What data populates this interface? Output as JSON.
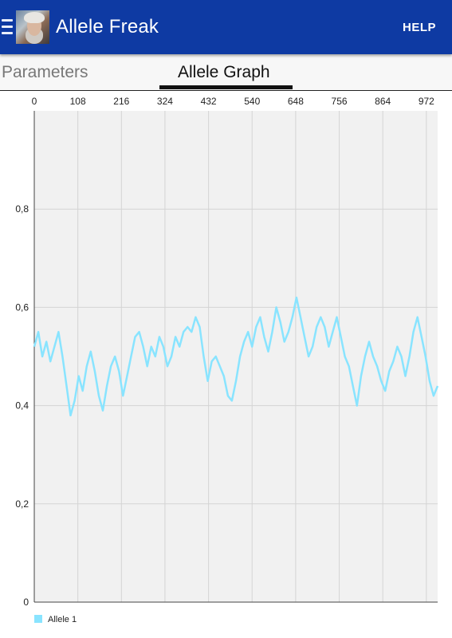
{
  "appbar": {
    "title": "Allele Freak",
    "help_label": "HELP"
  },
  "tabs": [
    {
      "label": "Parameters",
      "selected": false
    },
    {
      "label": "Allele Graph",
      "selected": true
    }
  ],
  "chart_data": {
    "type": "line",
    "x_ticks": [
      0,
      108,
      216,
      324,
      432,
      540,
      648,
      756,
      864,
      972
    ],
    "y_ticks": [
      "0",
      "0,2",
      "0,4",
      "0,6",
      "0,8"
    ],
    "xlim": [
      0,
      1000
    ],
    "ylim": [
      0,
      1
    ],
    "x_axis_position": "top",
    "grid": true,
    "legend": "bottom-left",
    "series": [
      {
        "name": "Allele 1",
        "color": "#89e4ff",
        "x": [
          0,
          10,
          20,
          30,
          40,
          50,
          60,
          70,
          80,
          90,
          100,
          110,
          120,
          130,
          140,
          150,
          160,
          170,
          180,
          190,
          200,
          210,
          220,
          230,
          240,
          250,
          260,
          270,
          280,
          290,
          300,
          310,
          320,
          330,
          340,
          350,
          360,
          370,
          380,
          390,
          400,
          410,
          420,
          430,
          440,
          450,
          460,
          470,
          480,
          490,
          500,
          510,
          520,
          530,
          540,
          550,
          560,
          570,
          580,
          590,
          600,
          610,
          620,
          630,
          640,
          650,
          660,
          670,
          680,
          690,
          700,
          710,
          720,
          730,
          740,
          750,
          760,
          770,
          780,
          790,
          800,
          810,
          820,
          830,
          840,
          850,
          860,
          870,
          880,
          890,
          900,
          910,
          920,
          930,
          940,
          950,
          960,
          970,
          980,
          990,
          1000
        ],
        "values": [
          0.52,
          0.55,
          0.5,
          0.53,
          0.49,
          0.52,
          0.55,
          0.5,
          0.44,
          0.38,
          0.41,
          0.46,
          0.43,
          0.48,
          0.51,
          0.47,
          0.42,
          0.39,
          0.44,
          0.48,
          0.5,
          0.47,
          0.42,
          0.46,
          0.5,
          0.54,
          0.55,
          0.52,
          0.48,
          0.52,
          0.5,
          0.54,
          0.52,
          0.48,
          0.5,
          0.54,
          0.52,
          0.55,
          0.56,
          0.55,
          0.58,
          0.56,
          0.5,
          0.45,
          0.49,
          0.5,
          0.48,
          0.46,
          0.42,
          0.41,
          0.45,
          0.5,
          0.53,
          0.55,
          0.52,
          0.56,
          0.58,
          0.54,
          0.51,
          0.55,
          0.6,
          0.57,
          0.53,
          0.55,
          0.58,
          0.62,
          0.58,
          0.54,
          0.5,
          0.52,
          0.56,
          0.58,
          0.56,
          0.52,
          0.55,
          0.58,
          0.54,
          0.5,
          0.48,
          0.44,
          0.4,
          0.46,
          0.5,
          0.53,
          0.5,
          0.48,
          0.45,
          0.43,
          0.47,
          0.49,
          0.52,
          0.5,
          0.46,
          0.5,
          0.55,
          0.58,
          0.54,
          0.5,
          0.45,
          0.42,
          0.44
        ]
      }
    ]
  }
}
